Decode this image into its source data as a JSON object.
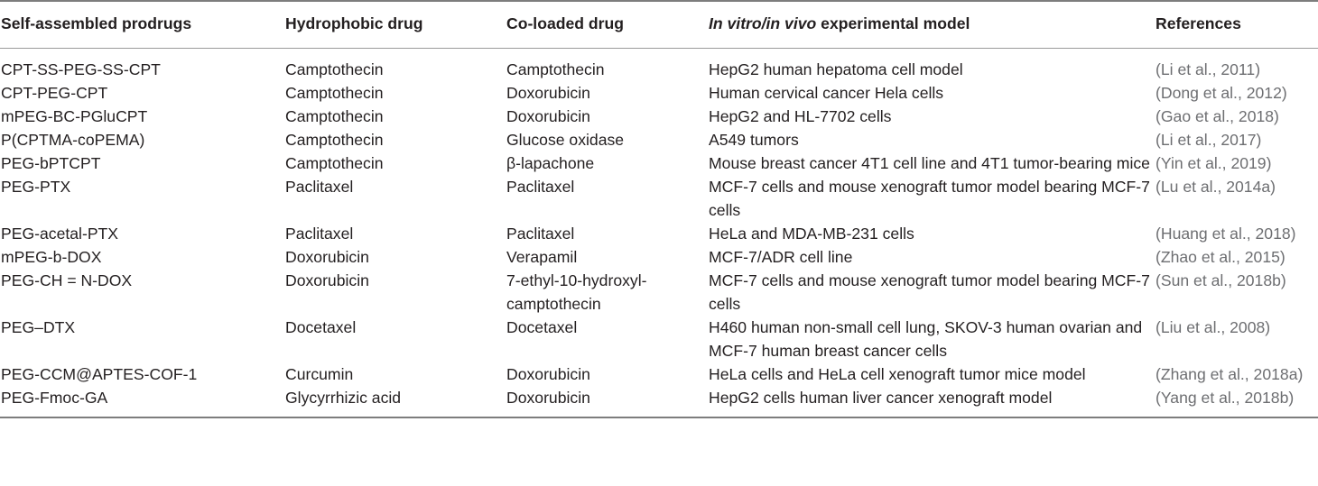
{
  "table": {
    "headers": {
      "prodrug": "Self-assembled prodrugs",
      "hydrophobic": "Hydrophobic drug",
      "coloaded": "Co-loaded drug",
      "model_italic": "In vitro/in vivo",
      "model_rest": " experimental model",
      "references": "References"
    },
    "rows": [
      {
        "prodrug": "CPT-SS-PEG-SS-CPT",
        "hydrophobic": "Camptothecin",
        "coloaded": "Camptothecin",
        "model": "HepG2 human hepatoma cell model",
        "ref": "(Li et al., 2011)"
      },
      {
        "prodrug": "CPT-PEG-CPT",
        "hydrophobic": "Camptothecin",
        "coloaded": "Doxorubicin",
        "model": "Human cervical cancer Hela cells",
        "ref": "(Dong et al., 2012)"
      },
      {
        "prodrug": "mPEG-BC-PGluCPT",
        "hydrophobic": "Camptothecin",
        "coloaded": "Doxorubicin",
        "model": "HepG2 and HL-7702 cells",
        "ref": "(Gao et al., 2018)"
      },
      {
        "prodrug": "P(CPTMA-coPEMA)",
        "hydrophobic": "Camptothecin",
        "coloaded": "Glucose oxidase",
        "model": "A549 tumors",
        "ref": "(Li et al., 2017)"
      },
      {
        "prodrug": "PEG-bPTCPT",
        "hydrophobic": "Camptothecin",
        "coloaded": "β-lapachone",
        "model": "Mouse breast cancer 4T1 cell line and 4T1 tumor-bearing mice",
        "ref": "(Yin et al., 2019)"
      },
      {
        "prodrug": "PEG-PTX",
        "hydrophobic": "Paclitaxel",
        "coloaded": "Paclitaxel",
        "model": "MCF-7 cells and mouse xenograft tumor model bearing MCF-7 cells",
        "ref": "(Lu et al., 2014a)"
      },
      {
        "prodrug": "PEG-acetal-PTX",
        "hydrophobic": "Paclitaxel",
        "coloaded": "Paclitaxel",
        "model": "HeLa and MDA-MB-231 cells",
        "ref": "(Huang et al., 2018)"
      },
      {
        "prodrug": "mPEG-b-DOX",
        "hydrophobic": "Doxorubicin",
        "coloaded": "Verapamil",
        "model": "MCF-7/ADR cell line",
        "ref": "(Zhao et al., 2015)"
      },
      {
        "prodrug": "PEG-CH = N-DOX",
        "hydrophobic": "Doxorubicin",
        "coloaded": "7-ethyl-10-hydroxyl-camptothecin",
        "model": "MCF-7 cells and mouse xenograft tumor model bearing MCF-7 cells",
        "ref": "(Sun et al., 2018b)"
      },
      {
        "prodrug": "PEG–DTX",
        "hydrophobic": "Docetaxel",
        "coloaded": "Docetaxel",
        "model": "H460 human non-small cell lung, SKOV-3 human ovarian and MCF-7 human breast cancer cells",
        "ref": "(Liu et al., 2008)"
      },
      {
        "prodrug": "PEG-CCM@APTES-COF-1",
        "hydrophobic": "Curcumin",
        "coloaded": "Doxorubicin",
        "model": "HeLa cells and HeLa cell xenograft tumor mice model",
        "ref": "(Zhang et al., 2018a)"
      },
      {
        "prodrug": "PEG-Fmoc-GA",
        "hydrophobic": "Glycyrrhizic acid",
        "coloaded": "Doxorubicin",
        "model": "HepG2 cells human liver cancer xenograft model",
        "ref": "(Yang et al., 2018b)"
      }
    ]
  }
}
